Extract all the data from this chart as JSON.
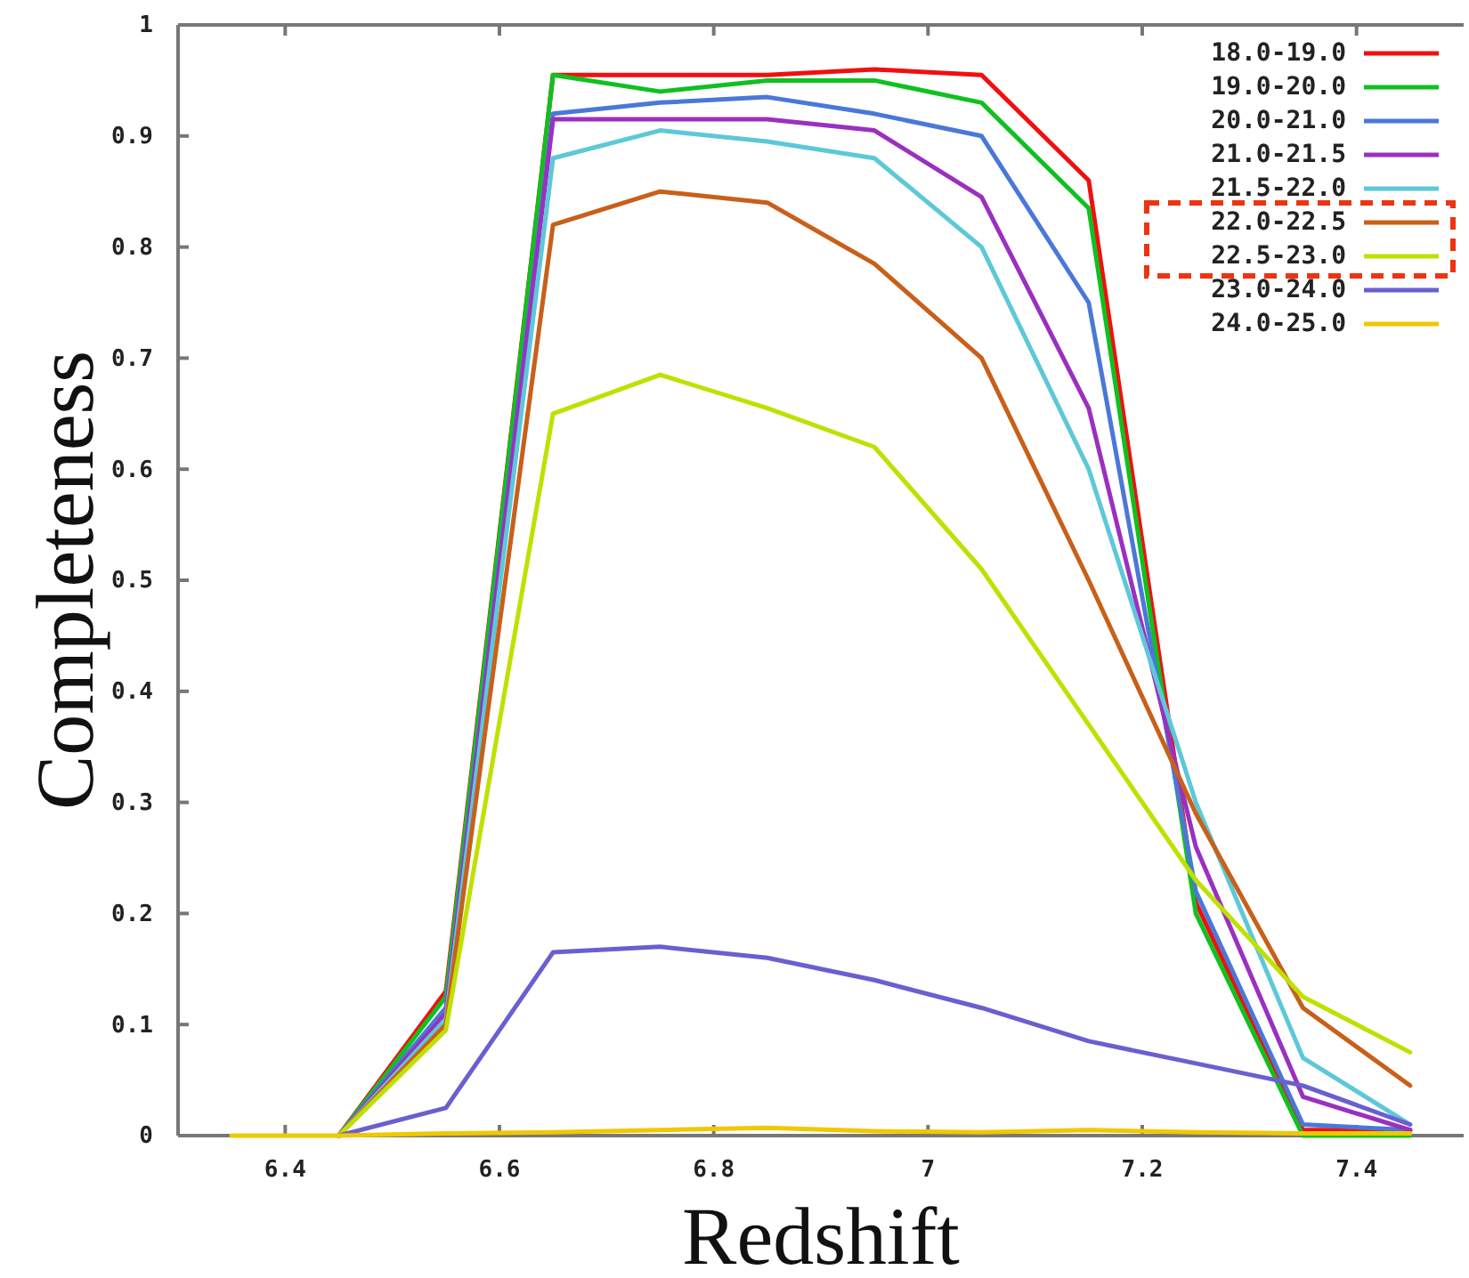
{
  "chart_data": {
    "type": "line",
    "xlabel": "Redshift",
    "ylabel": "Completeness",
    "xlim": [
      6.3,
      7.5
    ],
    "ylim": [
      0,
      1
    ],
    "xticks": [
      6.4,
      6.6,
      6.8,
      7,
      7.2,
      7.4
    ],
    "yticks": [
      0,
      0.1,
      0.2,
      0.3,
      0.4,
      0.5,
      0.6,
      0.7,
      0.8,
      0.9,
      1
    ],
    "x": [
      6.45,
      6.55,
      6.65,
      6.75,
      6.85,
      6.95,
      7.05,
      7.15,
      7.25,
      7.35,
      7.45
    ],
    "legend": "top right",
    "grid": false,
    "series": [
      {
        "name": "18.0-19.0",
        "color": "#f01010",
        "values": [
          0,
          0.13,
          0.955,
          0.955,
          0.955,
          0.96,
          0.955,
          0.86,
          0.21,
          0.005,
          0.005
        ]
      },
      {
        "name": "19.0-20.0",
        "color": "#10c020",
        "values": [
          0,
          0.125,
          0.955,
          0.94,
          0.95,
          0.95,
          0.93,
          0.835,
          0.2,
          0,
          0
        ]
      },
      {
        "name": "20.0-21.0",
        "color": "#4a78d8",
        "values": [
          0,
          0.115,
          0.92,
          0.93,
          0.935,
          0.92,
          0.9,
          0.75,
          0.22,
          0.01,
          0.005
        ]
      },
      {
        "name": "21.0-21.5",
        "color": "#9b30c0",
        "values": [
          0,
          0.11,
          0.915,
          0.915,
          0.915,
          0.905,
          0.845,
          0.655,
          0.26,
          0.035,
          0.005
        ]
      },
      {
        "name": "21.5-22.0",
        "color": "#5cc8d8",
        "values": [
          0,
          0.105,
          0.88,
          0.905,
          0.895,
          0.88,
          0.8,
          0.6,
          0.3,
          0.07,
          0.01
        ]
      },
      {
        "name": "22.0-22.5",
        "color": "#c8601a",
        "values": [
          0,
          0.1,
          0.82,
          0.85,
          0.84,
          0.785,
          0.7,
          0.5,
          0.29,
          0.115,
          0.045
        ]
      },
      {
        "name": "22.5-23.0",
        "color": "#c0e000",
        "values": [
          0,
          0.095,
          0.65,
          0.685,
          0.655,
          0.62,
          0.51,
          0.37,
          0.23,
          0.125,
          0.075
        ]
      },
      {
        "name": "23.0-24.0",
        "color": "#6a5fd0",
        "values": [
          0,
          0.025,
          0.165,
          0.17,
          0.16,
          0.14,
          0.115,
          0.085,
          0.065,
          0.045,
          0.01
        ]
      },
      {
        "name": "24.0-25.0",
        "color": "#f0c800",
        "x": [
          6.35,
          6.45,
          6.55,
          6.65,
          6.75,
          6.85,
          6.95,
          7.05,
          7.15,
          7.25,
          7.35,
          7.45
        ],
        "values": [
          0,
          0,
          0.002,
          0.003,
          0.005,
          0.007,
          0.004,
          0.003,
          0.005,
          0.003,
          0.002,
          0.002
        ]
      }
    ]
  }
}
